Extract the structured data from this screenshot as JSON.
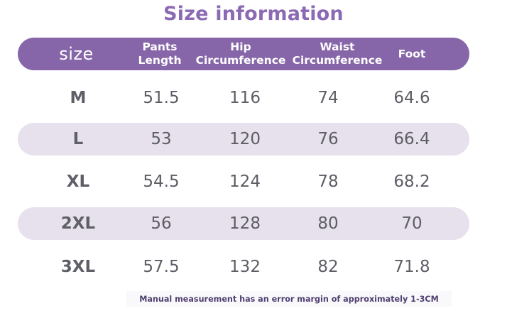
{
  "title": "Size information",
  "header": {
    "size": "size",
    "pants_length": [
      "Pants",
      "Length"
    ],
    "hip": [
      "Hip",
      "Circumference"
    ],
    "waist": [
      "Waist",
      "Circumference"
    ],
    "foot": [
      "Foot"
    ]
  },
  "rows": [
    {
      "size": "M",
      "pants_length": "51.5",
      "hip": "116",
      "waist": "74",
      "foot": "64.6"
    },
    {
      "size": "L",
      "pants_length": "53",
      "hip": "120",
      "waist": "76",
      "foot": "66.4"
    },
    {
      "size": "XL",
      "pants_length": "54.5",
      "hip": "124",
      "waist": "78",
      "foot": "68.2"
    },
    {
      "size": "2XL",
      "pants_length": "56",
      "hip": "128",
      "waist": "80",
      "foot": "70"
    },
    {
      "size": "3XL",
      "pants_length": "57.5",
      "hip": "132",
      "waist": "82",
      "foot": "71.8"
    }
  ],
  "note": "Manual measurement has an error margin of approximately 1-3CM",
  "colors": {
    "title": "#8b69b3",
    "header_bg": "#8666a8",
    "shaded_row": "#e6e1ec",
    "text": "#5d5d66"
  }
}
